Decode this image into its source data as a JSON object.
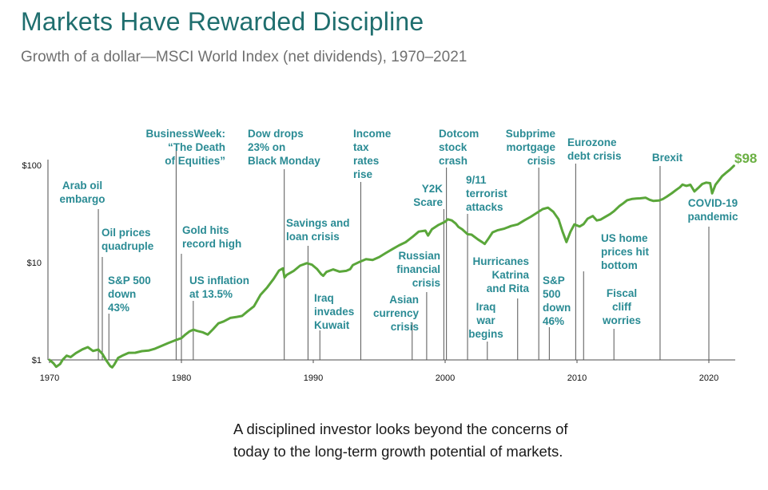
{
  "header": {
    "title": "Markets Have Rewarded Discipline",
    "subtitle": "Growth of a dollar—MSCI World Index (net dividends), 1970–2021"
  },
  "footer": {
    "text": "A disciplined investor looks beyond the concerns of today to the long-term growth potential of markets."
  },
  "colors": {
    "series": "#5aa63a",
    "annotation": "#2a8b94",
    "title": "#1f6e6e",
    "axis": "#2b2b2b"
  },
  "chart_data": {
    "type": "line",
    "title": "Growth of a dollar—MSCI World Index (net dividends), 1970–2021",
    "xlabel": "",
    "ylabel": "",
    "xlim": [
      1970,
      2022
    ],
    "ylim": [
      1,
      150
    ],
    "yscale": "log",
    "y_ticks": [
      {
        "value": 1,
        "label": "$1"
      },
      {
        "value": 10,
        "label": "$10"
      },
      {
        "value": 100,
        "label": "$100"
      }
    ],
    "x_ticks": [
      {
        "value": 1970,
        "label": "1970"
      },
      {
        "value": 1980,
        "label": "1980"
      },
      {
        "value": 1990,
        "label": "1990"
      },
      {
        "value": 2000,
        "label": "2000"
      },
      {
        "value": 2010,
        "label": "2010"
      },
      {
        "value": 2020,
        "label": "2020"
      }
    ],
    "series": [
      {
        "name": "MSCI World Index (net dividends)",
        "x": [
          1970.0,
          1970.3,
          1970.5,
          1970.8,
          1971.0,
          1971.3,
          1971.6,
          1972.0,
          1972.5,
          1972.9,
          1973.3,
          1973.7,
          1974.0,
          1974.3,
          1974.6,
          1974.75,
          1974.9,
          1975.2,
          1975.5,
          1976.0,
          1976.5,
          1977.0,
          1977.5,
          1978.0,
          1978.5,
          1979.0,
          1979.5,
          1980.0,
          1980.3,
          1980.6,
          1980.9,
          1981.2,
          1981.6,
          1982.0,
          1982.4,
          1982.8,
          1983.2,
          1983.7,
          1984.2,
          1984.6,
          1985.0,
          1985.5,
          1986.0,
          1986.5,
          1987.0,
          1987.4,
          1987.7,
          1987.82,
          1988.0,
          1988.5,
          1989.0,
          1989.5,
          1989.9,
          1990.3,
          1990.6,
          1990.75,
          1991.0,
          1991.5,
          1992.0,
          1992.5,
          1992.8,
          1993.0,
          1993.5,
          1994.0,
          1994.5,
          1995.0,
          1995.5,
          1996.0,
          1996.5,
          1997.0,
          1997.5,
          1998.0,
          1998.5,
          1998.7,
          1999.0,
          1999.5,
          2000.0,
          2000.2,
          2000.5,
          2000.8,
          2001.0,
          2001.3,
          2001.7,
          2002.0,
          2002.5,
          2002.8,
          2003.0,
          2003.3,
          2003.6,
          2004.0,
          2004.5,
          2005.0,
          2005.5,
          2006.0,
          2006.5,
          2007.0,
          2007.4,
          2007.8,
          2008.2,
          2008.6,
          2008.9,
          2009.2,
          2009.5,
          2009.8,
          2010.2,
          2010.5,
          2010.8,
          2011.2,
          2011.5,
          2011.8,
          2012.2,
          2012.5,
          2012.8,
          2013.2,
          2013.5,
          2013.8,
          2014.2,
          2014.5,
          2014.8,
          2015.2,
          2015.5,
          2015.8,
          2016.2,
          2016.5,
          2016.8,
          2017.2,
          2017.5,
          2017.8,
          2018.0,
          2018.3,
          2018.6,
          2018.9,
          2019.2,
          2019.5,
          2019.8,
          2020.1,
          2020.25,
          2020.5,
          2020.8,
          2021.0,
          2021.3,
          2021.6,
          2021.9
        ],
        "values": [
          1.0,
          0.93,
          0.86,
          0.92,
          1.02,
          1.12,
          1.08,
          1.18,
          1.28,
          1.34,
          1.22,
          1.26,
          1.14,
          0.98,
          0.86,
          0.84,
          0.9,
          1.06,
          1.12,
          1.2,
          1.2,
          1.24,
          1.25,
          1.3,
          1.38,
          1.47,
          1.56,
          1.65,
          1.8,
          1.95,
          2.05,
          2.0,
          1.95,
          1.85,
          2.1,
          2.4,
          2.5,
          2.7,
          2.75,
          2.8,
          3.1,
          3.5,
          4.6,
          5.5,
          6.8,
          8.3,
          8.8,
          7.1,
          7.6,
          8.3,
          9.4,
          9.9,
          9.5,
          8.5,
          7.5,
          7.2,
          7.9,
          8.4,
          8.0,
          8.2,
          8.6,
          9.5,
          10.3,
          11.0,
          10.8,
          11.5,
          12.6,
          13.7,
          14.9,
          16.0,
          18.0,
          20.5,
          21.0,
          18.8,
          22.0,
          24.5,
          26.5,
          28.2,
          27.5,
          25.5,
          23.5,
          22.0,
          19.5,
          19.2,
          17.0,
          16.0,
          15.3,
          17.5,
          20.3,
          21.5,
          22.5,
          24.0,
          25.0,
          27.5,
          30.0,
          33.0,
          35.5,
          36.5,
          33.0,
          27.5,
          20.5,
          16.0,
          20.5,
          24.5,
          23.5,
          25.0,
          28.5,
          30.5,
          27.5,
          28.0,
          30.0,
          31.5,
          33.5,
          37.5,
          40.0,
          43.0,
          44.5,
          45.0,
          45.5,
          46.5,
          44.5,
          43.5,
          44.0,
          45.5,
          48.0,
          52.0,
          55.5,
          59.0,
          62.5,
          60.5,
          62.0,
          53.0,
          58.0,
          64.0,
          66.5,
          66.0,
          52.0,
          64.0,
          72.0,
          78.0,
          84.0,
          90.0,
          98.0
        ]
      }
    ],
    "end_label": "$98",
    "annotations": [
      {
        "year": 1973.7,
        "lines": [
          "Arab oil",
          "embargo"
        ],
        "anchor": "middle"
      },
      {
        "year": 1974.0,
        "lines": [
          "Oil prices",
          "quadruple"
        ],
        "anchor": "start"
      },
      {
        "year": 1974.5,
        "lines": [
          "S&P 500",
          "down",
          "43%"
        ],
        "anchor": "start"
      },
      {
        "year": 1979.6,
        "lines": [
          "BusinessWeek:",
          "“The Death",
          "of Equities”"
        ],
        "anchor": "end"
      },
      {
        "year": 1980.0,
        "lines": [
          "Gold hits",
          "record high"
        ],
        "anchor": "start"
      },
      {
        "year": 1980.9,
        "lines": [
          "US inflation",
          "at 13.5%"
        ],
        "anchor": "start"
      },
      {
        "year": 1987.8,
        "lines": [
          "Dow drops",
          "23%  on",
          "Black Monday"
        ],
        "anchor": "start"
      },
      {
        "year": 1989.6,
        "lines": [
          "Savings and",
          "loan crisis"
        ],
        "anchor": "start"
      },
      {
        "year": 1990.5,
        "lines": [
          "Iraq",
          "invades",
          "Kuwait"
        ],
        "anchor": "start"
      },
      {
        "year": 1993.6,
        "lines": [
          "Income",
          "tax",
          "rates",
          "rise"
        ],
        "anchor": "start"
      },
      {
        "year": 1997.5,
        "lines": [
          "Asian",
          "currency",
          "crisis"
        ],
        "anchor": "end"
      },
      {
        "year": 1998.6,
        "lines": [
          "Russian",
          "financial",
          "crisis"
        ],
        "anchor": "end"
      },
      {
        "year": 1999.9,
        "lines": [
          "Y2K",
          "Scare"
        ],
        "anchor": "end"
      },
      {
        "year": 2000.1,
        "lines": [
          "Dotcom",
          "stock",
          "crash"
        ],
        "anchor": "start"
      },
      {
        "year": 2001.7,
        "lines": [
          "9/11",
          "terrorist",
          "attacks"
        ],
        "anchor": "start"
      },
      {
        "year": 2003.2,
        "lines": [
          "Iraq",
          "war",
          "begins"
        ],
        "anchor": "middle"
      },
      {
        "year": 2005.5,
        "lines": [
          "Hurricanes",
          "Katrina",
          "and Rita"
        ],
        "anchor": "end"
      },
      {
        "year": 2007.1,
        "lines": [
          "Subprime",
          "mortgage",
          "crisis"
        ],
        "anchor": "end"
      },
      {
        "year": 2007.9,
        "lines": [
          "S&P",
          "500",
          "down",
          "46%"
        ],
        "anchor": "start"
      },
      {
        "year": 2009.9,
        "lines": [
          "Eurozone",
          "debt crisis"
        ],
        "anchor": "start"
      },
      {
        "year": 2010.5,
        "lines": [
          "US home",
          "prices hit",
          "bottom"
        ],
        "anchor": "start"
      },
      {
        "year": 2012.8,
        "lines": [
          "Fiscal",
          "cliff",
          "worries"
        ],
        "anchor": "middle"
      },
      {
        "year": 2016.3,
        "lines": [
          "Brexit"
        ],
        "anchor": "middle"
      },
      {
        "year": 2020.0,
        "lines": [
          "COVID-19",
          "pandemic"
        ],
        "anchor": "middle"
      }
    ]
  }
}
